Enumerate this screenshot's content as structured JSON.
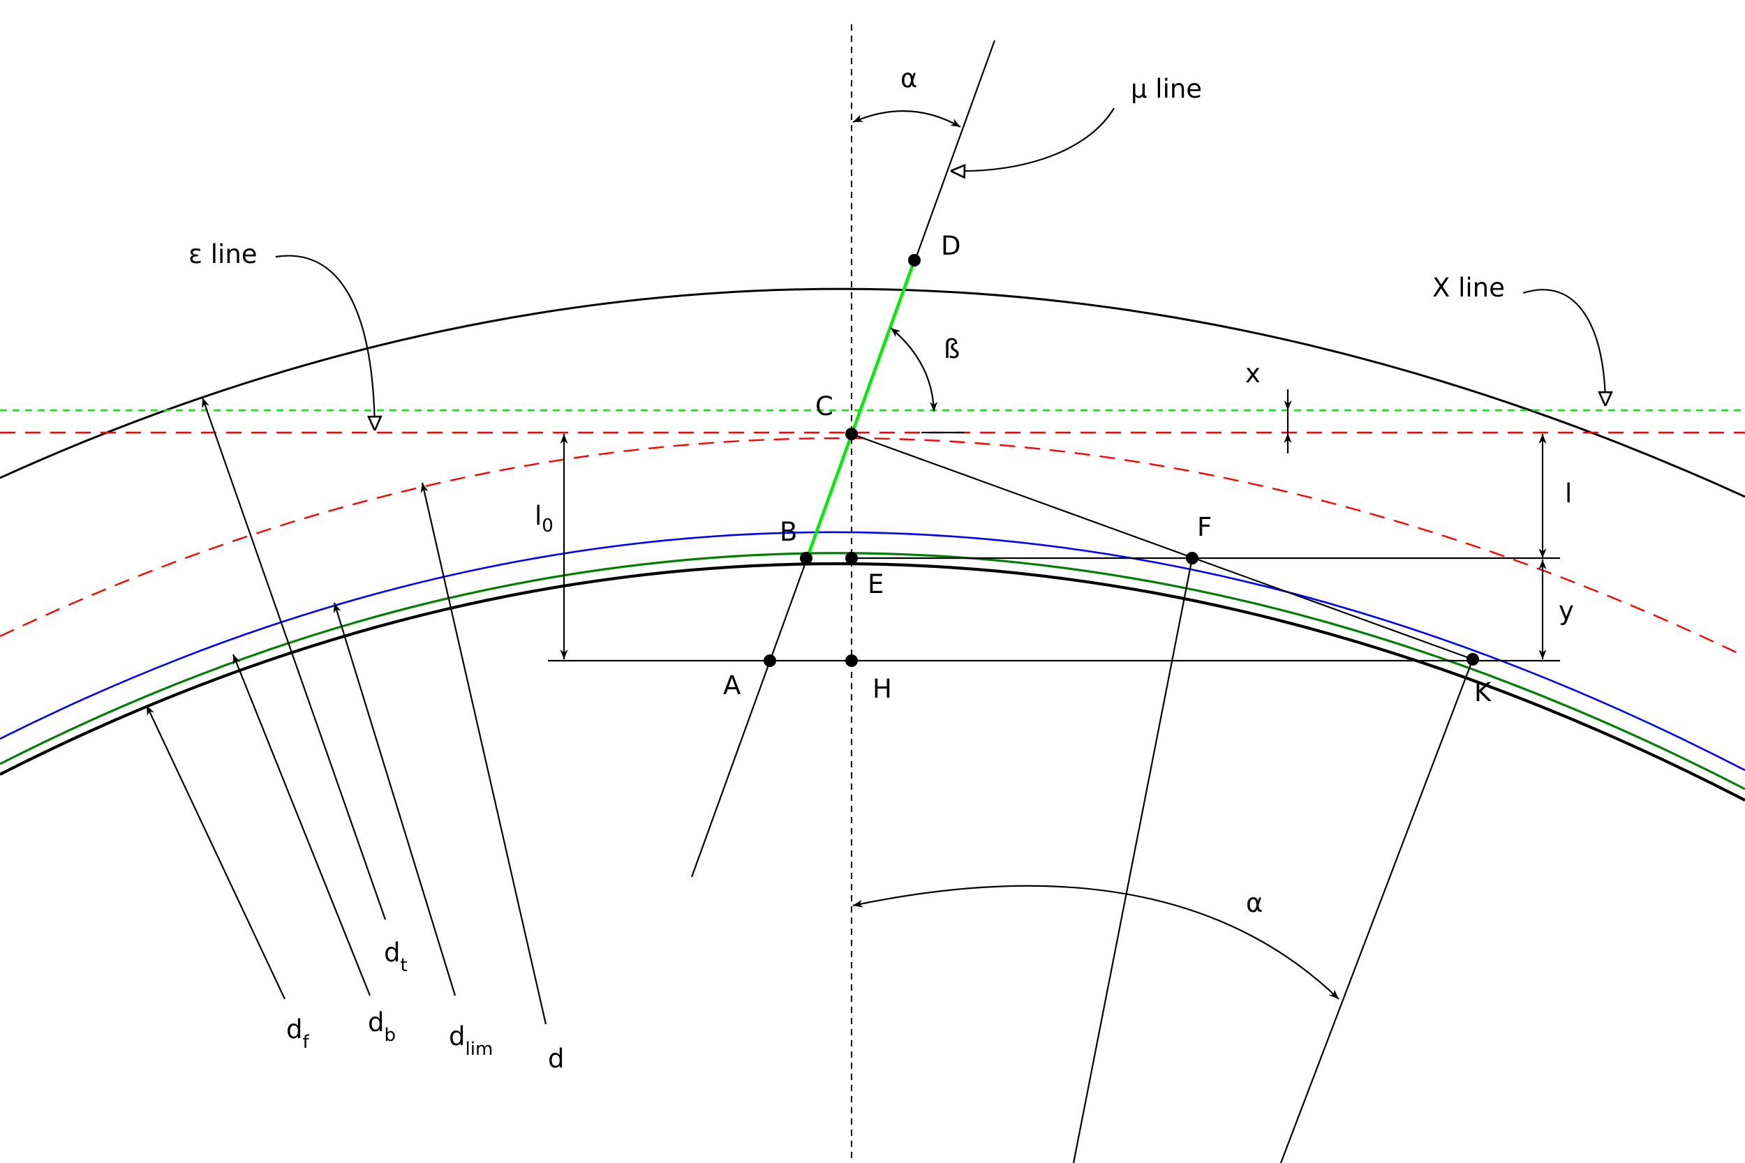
{
  "labels": {
    "alpha_top": "α",
    "mu_line": "μ line",
    "epsilon_line": "ε line",
    "x_line": "X line",
    "beta": "ß",
    "x_dim": "x",
    "l_dim": "l",
    "l0_main": "l",
    "l0_sub": "0",
    "y_dim": "y",
    "alpha_bottom": "α",
    "point_A": "A",
    "point_B": "B",
    "point_C": "C",
    "point_D": "D",
    "point_E": "E",
    "point_F": "F",
    "point_H": "H",
    "point_K": "K",
    "d_t_main": "d",
    "d_t_sub": "t",
    "d_f_main": "d",
    "d_f_sub": "f",
    "d_b_main": "d",
    "d_b_sub": "b",
    "d_lim_main": "d",
    "d_lim_sub": "lim",
    "d_main": "d"
  },
  "colors": {
    "outer_circle": "#000000",
    "root_circle": "#000000",
    "blue_circle": "#0000ff",
    "green_circle": "#008000",
    "lime_segment": "#00ee00",
    "red_dashed": "#ff0000",
    "green_dashed": "#00ee00"
  }
}
